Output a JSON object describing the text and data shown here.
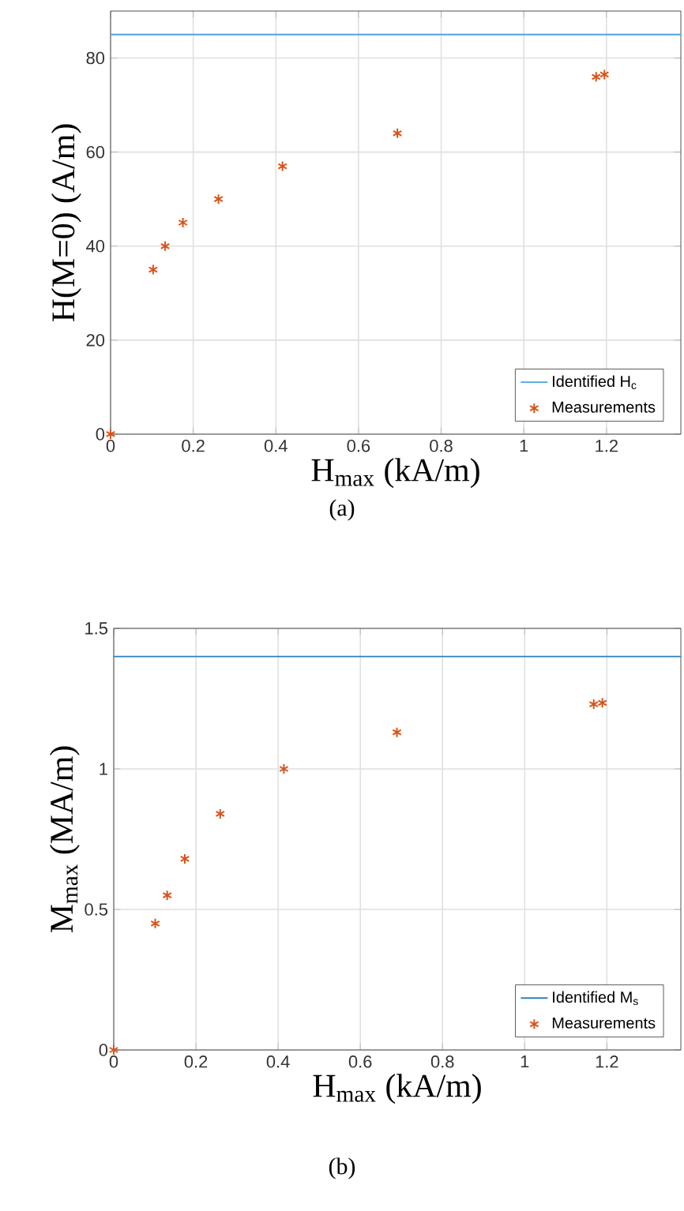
{
  "chart_data": [
    {
      "type": "scatter",
      "xlabel": "H$_{max}$ (kA/m)",
      "ylabel": "H(M=0) (A/m)",
      "annotations": [
        "(a)"
      ],
      "xlim": [
        0,
        1.38
      ],
      "ylim": [
        0,
        90
      ],
      "xticks": [
        0,
        0.2,
        0.4,
        0.6,
        0.8,
        1,
        1.2
      ],
      "yticks": [
        0,
        20,
        40,
        60,
        80
      ],
      "grid": true,
      "legend": "bottom right",
      "series": [
        {
          "name": "Identified H$_{c}$",
          "type": "line",
          "color": "#4da3e0",
          "x": [
            0,
            1.38
          ],
          "values": [
            85,
            85
          ]
        },
        {
          "name": "Measurements",
          "marker": "cross",
          "color": "#d95319",
          "x": [
            0,
            0.103,
            0.132,
            0.175,
            0.261,
            0.416,
            0.694,
            1.175,
            1.195
          ],
          "values": [
            0,
            35,
            40,
            45,
            50,
            57,
            64,
            76,
            76.5
          ]
        }
      ]
    },
    {
      "type": "scatter",
      "xlabel": "H$_{max}$ (kA/m)",
      "ylabel": "M$_{max}$ (MA/m)",
      "annotations": [
        "(b)"
      ],
      "xlim": [
        0,
        1.38
      ],
      "ylim": [
        0,
        1.5
      ],
      "xticks": [
        0,
        0.2,
        0.4,
        0.6,
        0.8,
        1,
        1.2
      ],
      "yticks": [
        0,
        0.5,
        1,
        1.5
      ],
      "grid": true,
      "legend": "bottom right",
      "series": [
        {
          "name": "Identified M$_{s}$",
          "type": "line",
          "color": "#2e7fc0",
          "x": [
            0,
            1.38
          ],
          "values": [
            1.4,
            1.4
          ]
        },
        {
          "name": "Measurements",
          "marker": "cross",
          "color": "#d95319",
          "x": [
            0,
            0.101,
            0.13,
            0.173,
            0.259,
            0.414,
            0.689,
            1.168,
            1.189
          ],
          "values": [
            0,
            0.45,
            0.55,
            0.68,
            0.84,
            1.0,
            1.13,
            1.23,
            1.235
          ]
        }
      ]
    }
  ]
}
